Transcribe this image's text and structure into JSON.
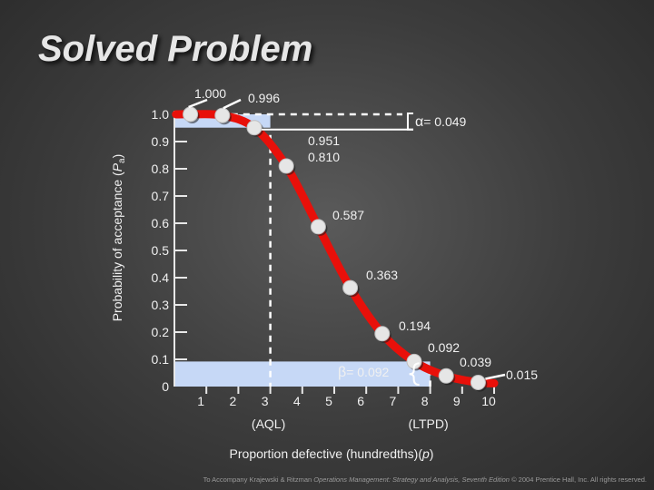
{
  "slide": {
    "title": "Solved Problem",
    "footer_prefix": "To Accompany Krajewski & Ritzman ",
    "footer_italic": "Operations Management: Strategy and Analysis, Seventh Edition",
    "footer_suffix": " © 2004 Prentice Hall, Inc. All rights reserved."
  },
  "chart_data": {
    "type": "line",
    "ylabel": "Probability of acceptance (Pa)",
    "ylabel_main": "Probability of acceptance (",
    "ylabel_var": "P",
    "ylabel_sub": "a",
    "ylabel_end": ")",
    "xlabel": "Proportion defective (hundredths)(p)",
    "xlabel_main": "Proportion defective (hundredths)(",
    "xlabel_var": "p",
    "xlabel_end": ")",
    "xlim": [
      0,
      10
    ],
    "ylim": [
      0,
      1.0
    ],
    "y_ticks": [
      0,
      0.1,
      0.2,
      0.3,
      0.4,
      0.5,
      0.6,
      0.7,
      0.8,
      0.9,
      1.0
    ],
    "y_tick_labels": [
      "0",
      "0.1",
      "0.2",
      "0.3",
      "0.4",
      "0.5",
      "0.6",
      "0.7",
      "0.8",
      "0.9",
      "1.0"
    ],
    "x_ticks": [
      1,
      2,
      3,
      4,
      5,
      6,
      7,
      8,
      9,
      10
    ],
    "x_tick_labels": [
      "1",
      "2",
      "3",
      "4",
      "5",
      "6",
      "7",
      "8",
      "9",
      "10"
    ],
    "series": [
      {
        "x": [
          0.5,
          1.5,
          2.5,
          3.5,
          4.5,
          5.5,
          6.5,
          7.5,
          8.5,
          9.5
        ],
        "y": [
          1.0,
          0.996,
          0.951,
          0.81,
          0.587,
          0.363,
          0.194,
          0.092,
          0.039,
          0.015
        ]
      }
    ],
    "point_labels": [
      "1.000",
      "0.996",
      "0.951",
      "0.810",
      "0.587",
      "0.363",
      "0.194",
      "0.092",
      "0.039",
      "0.015"
    ],
    "colors": {
      "curve": "#e8100a",
      "marker": "#e6e6e6",
      "band": "#c6d8f6"
    },
    "annotations": {
      "aql_label": "(AQL)",
      "aql_x": 3,
      "ltpd_label": "(LTPD)",
      "ltpd_x": 8,
      "alpha_symbol": "α",
      "alpha_text": "= 0.049",
      "alpha_value": 0.049,
      "beta_symbol": "β",
      "beta_text": "= 0.092",
      "beta_value": 0.092
    }
  }
}
